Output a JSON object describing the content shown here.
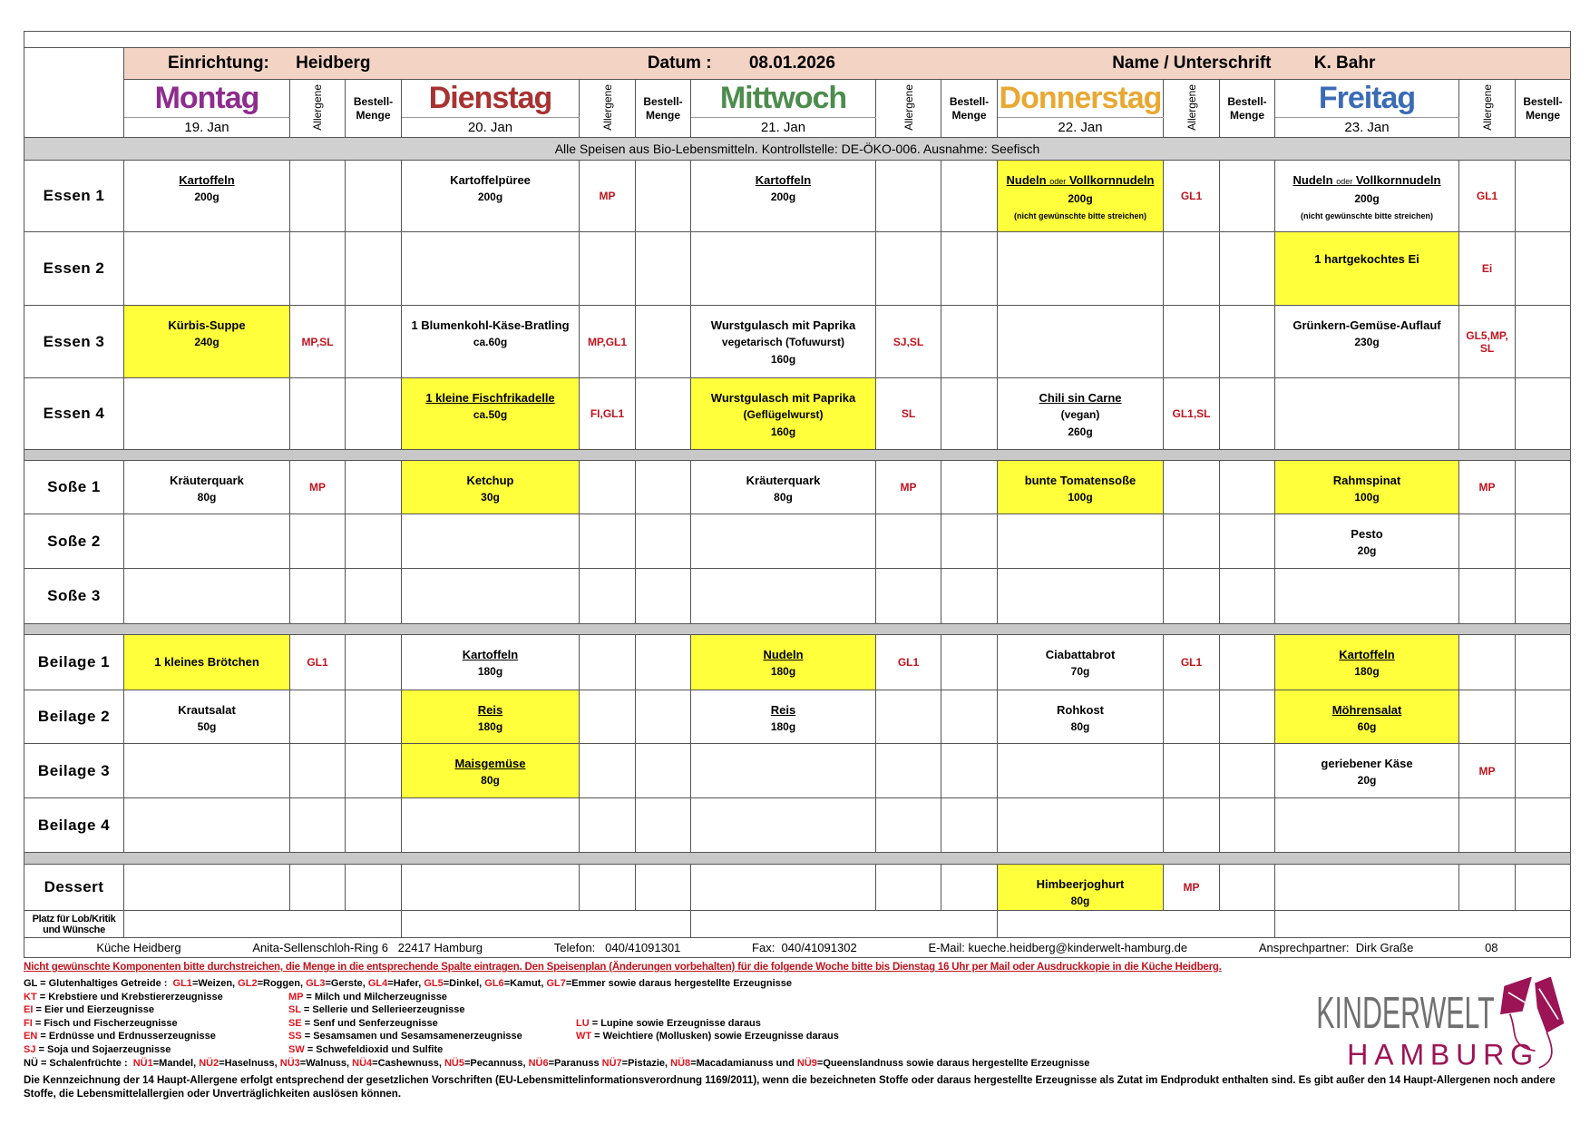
{
  "header": {
    "facility_label": "Einrichtung:",
    "facility": "Heidberg",
    "date_label": "Datum :",
    "date": "08.01.2026",
    "name_label": "Name / Unterschrift",
    "name": "K. Bahr"
  },
  "columns": {
    "allergens": "Allergene",
    "order_qty": "Bestell-Menge"
  },
  "days": [
    {
      "name": "Montag",
      "date": "19. Jan",
      "color": "#8e2c8e"
    },
    {
      "name": "Dienstag",
      "date": "20. Jan",
      "color": "#a83232"
    },
    {
      "name": "Mittwoch",
      "date": "21. Jan",
      "color": "#4c8c4c"
    },
    {
      "name": "Donnerstag",
      "date": "22. Jan",
      "color": "#e8a832"
    },
    {
      "name": "Freitag",
      "date": "23. Jan",
      "color": "#3b6bb5"
    }
  ],
  "banner": "Alle Speisen aus Bio-Lebensmitteln. Kontrollstelle: DE-ÖKO-006. Ausnahme: Seefisch",
  "highlight_color": "#ffff3c",
  "allergen_color": "#c0141e",
  "rows": [
    {
      "label": "Essen 1",
      "cells": [
        {
          "title": "Kartoffeln",
          "underline": true,
          "lines": [
            "200g"
          ]
        },
        {
          "title": "Kartoffelpüree",
          "lines": [
            "200g"
          ],
          "allergens": "MP"
        },
        {
          "title": "Kartoffeln",
          "underline": true,
          "lines": [
            "200g"
          ]
        },
        {
          "title": "Nudeln",
          "connector": "oder",
          "title2": "Vollkornnudeln",
          "underline": true,
          "lines": [
            "200g"
          ],
          "note": "(nicht gewünschte bitte streichen)",
          "highlight": true,
          "allergens": "GL1"
        },
        {
          "title": "Nudeln",
          "connector": "oder",
          "title2": "Vollkornnudeln",
          "underline": true,
          "lines": [
            "200g"
          ],
          "note": "(nicht gewünschte bitte streichen)",
          "allergens": "GL1"
        }
      ]
    },
    {
      "label": "Essen 2",
      "cells": [
        null,
        null,
        null,
        null,
        {
          "title": "1 hartgekochtes Ei",
          "highlight": true,
          "allergens": "Ei"
        }
      ]
    },
    {
      "label": "Essen 3",
      "cells": [
        {
          "title": "Kürbis-Suppe",
          "lines": [
            "240g"
          ],
          "highlight": true,
          "allergens": "MP,SL"
        },
        {
          "title": "1 Blumenkohl-Käse-Bratling",
          "lines": [
            "ca.60g"
          ],
          "allergens": "MP,GL1"
        },
        {
          "title": "Wurstgulasch mit Paprika",
          "lines": [
            "vegetarisch (Tofuwurst)",
            "160g"
          ],
          "allergens": "SJ,SL"
        },
        null,
        {
          "title": "Grünkern-Gemüse-Auflauf",
          "lines": [
            "230g"
          ],
          "allergens": "GL5,MP, SL"
        }
      ]
    },
    {
      "label": "Essen 4",
      "cells": [
        null,
        {
          "title": "1 kleine Fischfrikadelle",
          "underline": true,
          "lines": [
            "ca.50g"
          ],
          "highlight": true,
          "allergens": "FI,GL1"
        },
        {
          "title": "Wurstgulasch mit Paprika",
          "lines": [
            "(Geflügelwurst)",
            "160g"
          ],
          "highlight": true,
          "allergens": "SL"
        },
        {
          "title": "Chili sin Carne",
          "underline": true,
          "lines": [
            "(vegan)",
            "260g"
          ],
          "allergens": "GL1,SL"
        },
        null
      ]
    },
    {
      "spacer": true
    },
    {
      "label": "Soße 1",
      "cells": [
        {
          "title": "Kräuterquark",
          "lines": [
            "80g"
          ],
          "allergens": "MP"
        },
        {
          "title": "Ketchup",
          "lines": [
            "30g"
          ],
          "highlight": true
        },
        {
          "title": "Kräuterquark",
          "lines": [
            "80g"
          ],
          "allergens": "MP"
        },
        {
          "title": "bunte Tomatensoße",
          "lines": [
            "100g"
          ],
          "highlight": true
        },
        {
          "title": "Rahmspinat",
          "lines": [
            "100g"
          ],
          "highlight": true,
          "allergens": "MP"
        }
      ]
    },
    {
      "label": "Soße 2",
      "cells": [
        null,
        null,
        null,
        null,
        {
          "title": "Pesto",
          "lines": [
            "20g"
          ]
        }
      ]
    },
    {
      "label": "Soße 3",
      "cells": [
        null,
        null,
        null,
        null,
        null
      ]
    },
    {
      "spacer": true
    },
    {
      "label": "Beilage 1",
      "cells": [
        {
          "title": "1 kleines Brötchen",
          "highlight": true,
          "allergens": "GL1"
        },
        {
          "title": "Kartoffeln",
          "underline": true,
          "lines": [
            "180g"
          ]
        },
        {
          "title": "Nudeln",
          "underline": true,
          "lines": [
            "180g"
          ],
          "highlight": true,
          "allergens": "GL1"
        },
        {
          "title": "Ciabattabrot",
          "lines": [
            "70g"
          ],
          "allergens": "GL1"
        },
        {
          "title": "Kartoffeln",
          "underline": true,
          "lines": [
            "180g"
          ],
          "highlight": true
        }
      ]
    },
    {
      "label": "Beilage 2",
      "cells": [
        {
          "title": "Krautsalat",
          "lines": [
            "50g"
          ]
        },
        {
          "title": "Reis",
          "underline": true,
          "lines": [
            "180g"
          ],
          "highlight": true
        },
        {
          "title": "Reis",
          "underline": true,
          "lines": [
            "180g"
          ]
        },
        {
          "title": "Rohkost",
          "lines": [
            "80g"
          ]
        },
        {
          "title": "Möhrensalat",
          "underline": true,
          "lines": [
            "60g"
          ],
          "highlight": true
        }
      ]
    },
    {
      "label": "Beilage 3",
      "cells": [
        null,
        {
          "title": "Maisgemüse",
          "underline": true,
          "lines": [
            "80g"
          ],
          "highlight": true
        },
        null,
        null,
        {
          "title": "geriebener Käse",
          "lines": [
            "20g"
          ],
          "allergens": "MP"
        }
      ]
    },
    {
      "label": "Beilage 4",
      "cells": [
        null,
        null,
        null,
        null,
        null
      ]
    },
    {
      "spacer": true
    },
    {
      "label": "Dessert",
      "cells": [
        null,
        null,
        null,
        {
          "title": "Himbeerjoghurt",
          "lines": [
            "80g"
          ],
          "highlight": true,
          "allergens": "MP"
        },
        null
      ]
    }
  ],
  "feedback_label": "Platz für Lob/Kritik und Wünsche",
  "footer": {
    "kitchen": "Küche Heidberg",
    "address": "Anita-Sellenschloh-Ring 6   22417 Hamburg",
    "phone": "Telefon:   040/41091301",
    "fax": "Fax:  040/41091302",
    "email": "E-Mail: kueche.heidberg@kinderwelt-hamburg.de",
    "contact": "Ansprechpartner:  Dirk Graße",
    "page": "08"
  },
  "notice": "Nicht gewünschte Komponenten bitte durchstreichen,  die Menge in die entsprechende Spalte eintragen. Den Speisenplan (Änderungen vorbehalten) für die folgende Woche bitte bis Dienstag 16 Uhr per Mail oder Ausdruckkopie in die Küche Heidberg.",
  "legend": {
    "gluten": [
      {
        "t": "GL = Glutenhaltiges Getreide :  "
      },
      {
        "c": "GL1"
      },
      {
        "t": "=Weizen, "
      },
      {
        "c": "GL2"
      },
      {
        "t": "=Roggen, "
      },
      {
        "c": "GL3"
      },
      {
        "t": "=Gerste, "
      },
      {
        "c": "GL4"
      },
      {
        "t": "=Hafer, "
      },
      {
        "c": "GL5"
      },
      {
        "t": "=Dinkel, "
      },
      {
        "c": "GL6"
      },
      {
        "t": "=Kamut, "
      },
      {
        "c": "GL7"
      },
      {
        "t": "=Emmer sowie daraus hergestellte Erzeugnisse"
      }
    ],
    "grid": [
      [
        {
          "c": "KT",
          "t": " = Krebstiere und Krebstiererzeugnisse"
        },
        {
          "c": "MP",
          "t": " = Milch und Milcherzeugnisse"
        },
        null
      ],
      [
        {
          "c": "EI",
          "t": " = Eier und Eierzeugnisse"
        },
        {
          "c": "SL",
          "t": " = Sellerie und Sellerieerzeugnisse"
        },
        null
      ],
      [
        {
          "c": "FI",
          "t": " = Fisch und Fischerzeugnisse"
        },
        {
          "c": "SE",
          "t": " = Senf und Senferzeugnisse"
        },
        {
          "c": "LU",
          "t": " = Lupine sowie Erzeugnisse daraus"
        }
      ],
      [
        {
          "c": "EN",
          "t": " = Erdnüsse und Erdnusserzeugnisse"
        },
        {
          "c": "SS",
          "t": " = Sesamsamen und Sesamsamenerzeugnisse"
        },
        {
          "c": "WT",
          "t": " = Weichtiere (Mollusken) sowie Erzeugnisse daraus"
        }
      ],
      [
        {
          "c": "SJ",
          "t": " = Soja und Sojaerzeugnisse"
        },
        {
          "c": "SW",
          "t": " = Schwefeldioxid und Sulfite"
        },
        null
      ]
    ],
    "nuts": [
      {
        "t": "NÜ = Schalenfrüchte :  "
      },
      {
        "c": "NÜ1"
      },
      {
        "t": "=Mandel, "
      },
      {
        "c": "NÜ2"
      },
      {
        "t": "=Haselnuss, "
      },
      {
        "c": "NÜ3"
      },
      {
        "t": "=Walnuss, "
      },
      {
        "c": "NÜ4"
      },
      {
        "t": "=Cashewnuss, "
      },
      {
        "c": "NÜ5"
      },
      {
        "t": "=Pecannuss, "
      },
      {
        "c": "NÜ6"
      },
      {
        "t": "=Paranuss "
      },
      {
        "c": "NÜ7"
      },
      {
        "t": "=Pistazie, "
      },
      {
        "c": "NÜ8"
      },
      {
        "t": "=Macadamianuss und "
      },
      {
        "c": "NÜ9"
      },
      {
        "t": "=Queenslandnuss sowie daraus hergestellte Erzeugnisse"
      }
    ]
  },
  "disclaimer": "Die Kennzeichnung der 14 Haupt-Allergene erfolgt entsprechend der gesetzlichen Vorschriften (EU-Lebensmittelinformationsverordnung 1169/2011), wenn die bezeichneten Stoffe oder daraus hergestellte Erzeugnisse als Zutat im Endprodukt enthalten sind. Es gibt außer den 14 Haupt-Allergenen noch andere Stoffe, die Lebensmittelallergien oder Unverträglichkeiten auslösen können.",
  "logo": {
    "line1": "KINDERWELT",
    "line2": "HAMBURG",
    "gray": "#707070",
    "magenta": "#9c1456"
  }
}
